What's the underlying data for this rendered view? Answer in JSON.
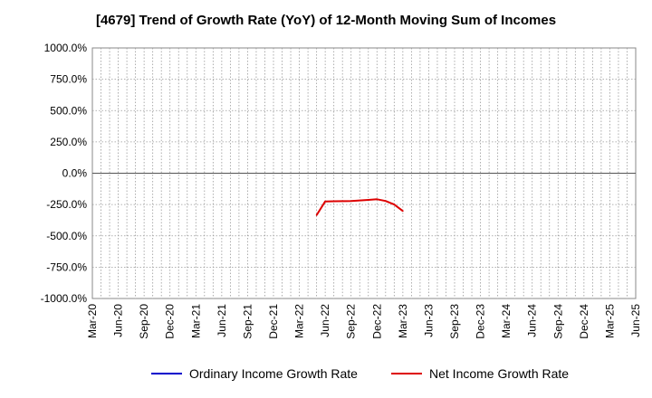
{
  "chart_data": {
    "type": "line",
    "title": "[4679]  Trend of Growth Rate (YoY) of 12-Month Moving Sum of Incomes",
    "xlabel": "",
    "ylabel": "",
    "ylim": [
      -1000,
      1000
    ],
    "y_ticks": [
      1000,
      750,
      500,
      250,
      0,
      -250,
      -500,
      -750,
      -1000
    ],
    "y_tick_labels": [
      "1000.0%",
      "750.0%",
      "500.0%",
      "250.0%",
      "0.0%",
      "-250.0%",
      "-500.0%",
      "-750.0%",
      "-1000.0%"
    ],
    "x_tick_labels": [
      "Mar-20",
      "Jun-20",
      "Sep-20",
      "Dec-20",
      "Mar-21",
      "Jun-21",
      "Sep-21",
      "Dec-21",
      "Mar-22",
      "Jun-22",
      "Sep-22",
      "Dec-22",
      "Mar-23",
      "Jun-23",
      "Sep-23",
      "Dec-23",
      "Mar-24",
      "Jun-24",
      "Sep-24",
      "Dec-24",
      "Mar-25",
      "Jun-25"
    ],
    "x_months": [
      "2020-03",
      "2020-04",
      "2020-05",
      "2020-06",
      "2020-07",
      "2020-08",
      "2020-09",
      "2020-10",
      "2020-11",
      "2020-12",
      "2021-01",
      "2021-02",
      "2021-03",
      "2021-04",
      "2021-05",
      "2021-06",
      "2021-07",
      "2021-08",
      "2021-09",
      "2021-10",
      "2021-11",
      "2021-12",
      "2022-01",
      "2022-02",
      "2022-03",
      "2022-04",
      "2022-05",
      "2022-06",
      "2022-07",
      "2022-08",
      "2022-09",
      "2022-10",
      "2022-11",
      "2022-12",
      "2023-01",
      "2023-02",
      "2023-03",
      "2023-04",
      "2023-05",
      "2023-06",
      "2023-07",
      "2023-08",
      "2023-09",
      "2023-10",
      "2023-11",
      "2023-12",
      "2024-01",
      "2024-02",
      "2024-03",
      "2024-04",
      "2024-05",
      "2024-06",
      "2024-07",
      "2024-08",
      "2024-09",
      "2024-10",
      "2024-11",
      "2024-12",
      "2025-01",
      "2025-02",
      "2025-03",
      "2025-04",
      "2025-05",
      "2025-06"
    ],
    "grid": true,
    "legend_position": "bottom",
    "series": [
      {
        "name": "Ordinary Income Growth Rate",
        "color": "#0000cc",
        "points": []
      },
      {
        "name": "Net Income Growth Rate",
        "color": "#dd0000",
        "points": [
          {
            "x": "2022-05",
            "y": -335
          },
          {
            "x": "2022-06",
            "y": -225
          },
          {
            "x": "2022-07",
            "y": -224
          },
          {
            "x": "2022-08",
            "y": -223
          },
          {
            "x": "2022-09",
            "y": -222
          },
          {
            "x": "2022-10",
            "y": -217
          },
          {
            "x": "2022-11",
            "y": -213
          },
          {
            "x": "2022-12",
            "y": -208
          },
          {
            "x": "2023-01",
            "y": -222
          },
          {
            "x": "2023-02",
            "y": -250
          },
          {
            "x": "2023-03",
            "y": -302
          }
        ]
      }
    ]
  }
}
